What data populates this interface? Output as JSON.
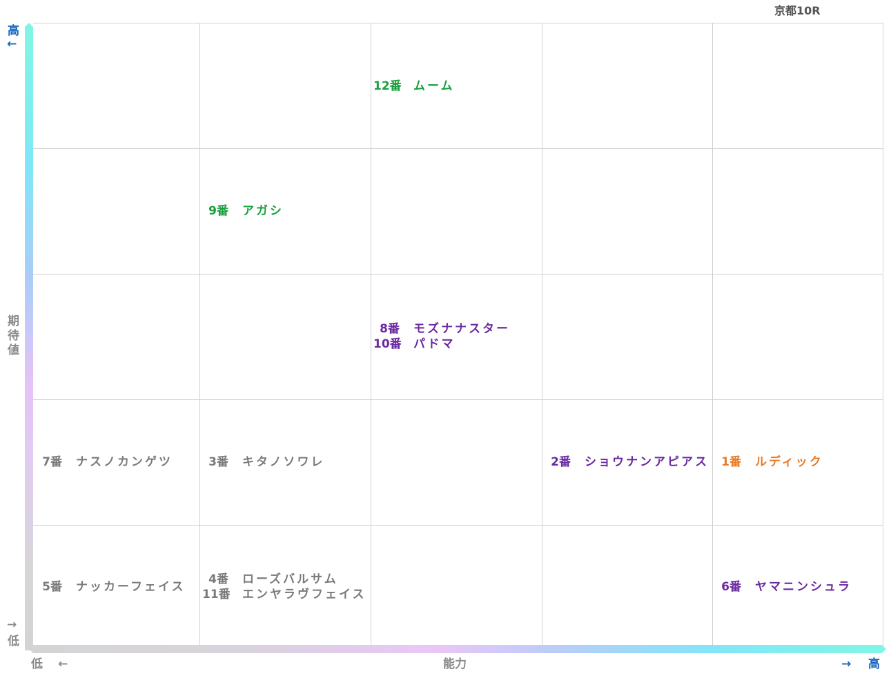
{
  "title": "京都10R",
  "axes": {
    "y_label": "期待値",
    "y_high": "高",
    "y_high_arrow": "←",
    "y_low": "低",
    "y_low_arrow": "→",
    "x_label": "能力",
    "x_low": "低",
    "x_low_arrow": "←",
    "x_high": "高",
    "x_high_arrow": "→"
  },
  "colors": {
    "green": "#17a03c",
    "purple": "#6a2aa0",
    "orange": "#e87a24",
    "gray": "#7a7a7a",
    "axis_label": "#1565c0"
  },
  "chart_data": {
    "type": "table",
    "title": "京都10R",
    "xlabel": "能力",
    "ylabel": "期待値",
    "grid": true,
    "columns": 5,
    "rows": 5,
    "cells": [
      {
        "ability": 3,
        "expectation": 5,
        "color": "green",
        "entries": [
          {
            "num": "12番",
            "name": "ムーム"
          }
        ]
      },
      {
        "ability": 2,
        "expectation": 4,
        "color": "green",
        "entries": [
          {
            "num": "9番",
            "name": "アガシ"
          }
        ]
      },
      {
        "ability": 3,
        "expectation": 3,
        "color": "purple",
        "entries": [
          {
            "num": "8番",
            "name": "モズナナスター"
          },
          {
            "num": "10番",
            "name": "パドマ"
          }
        ]
      },
      {
        "ability": 1,
        "expectation": 2,
        "color": "gray",
        "entries": [
          {
            "num": "7番",
            "name": "ナスノカンゲツ"
          }
        ]
      },
      {
        "ability": 2,
        "expectation": 2,
        "color": "gray",
        "entries": [
          {
            "num": "3番",
            "name": "キタノソワレ"
          }
        ]
      },
      {
        "ability": 4,
        "expectation": 2,
        "color": "purple",
        "entries": [
          {
            "num": "2番",
            "name": "ショウナンアピアス"
          }
        ]
      },
      {
        "ability": 5,
        "expectation": 2,
        "color": "orange",
        "entries": [
          {
            "num": "1番",
            "name": "ルディック"
          }
        ]
      },
      {
        "ability": 1,
        "expectation": 1,
        "color": "gray",
        "entries": [
          {
            "num": "5番",
            "name": "ナッカーフェイス"
          }
        ]
      },
      {
        "ability": 2,
        "expectation": 1,
        "color": "gray",
        "entries": [
          {
            "num": "4番",
            "name": "ローズバルサム"
          },
          {
            "num": "11番",
            "name": "エンヤラヴフェイス"
          }
        ]
      },
      {
        "ability": 5,
        "expectation": 1,
        "color": "purple",
        "entries": [
          {
            "num": "6番",
            "name": "ヤマニンシュラ"
          }
        ]
      }
    ]
  }
}
